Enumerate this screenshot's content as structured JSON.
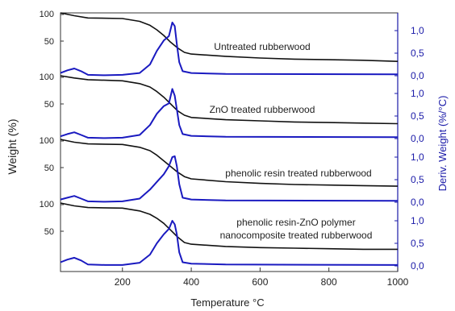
{
  "chart_data": {
    "type": "line",
    "xlabel": "Temperature °C",
    "ylabel_left": "Weight (%)",
    "ylabel_right": "Deriv. Weight (%/°C)",
    "x_range": [
      20,
      1000
    ],
    "x_ticks": [
      200,
      400,
      600,
      800,
      1000
    ],
    "x_tick_labels": [
      "200",
      "400",
      "600",
      "800",
      "1000"
    ],
    "weight_ticks": [
      50,
      100
    ],
    "weight_tick_labels": [
      "50",
      "100"
    ],
    "deriv_ticks": [
      0.0,
      0.5,
      1.0
    ],
    "deriv_tick_labels": [
      "0,0",
      "0,5",
      "1,0"
    ],
    "colors": {
      "weight": "#111111",
      "derivative": "#1a1ac0",
      "right_axis": "#1a1aa8",
      "frame": "#333333"
    },
    "panels": [
      {
        "label_lines": [
          "Untreated rubberwood"
        ],
        "weight": {
          "x": [
            20,
            60,
            100,
            200,
            250,
            280,
            300,
            320,
            340,
            360,
            380,
            400,
            500,
            600,
            700,
            800,
            900,
            1000
          ],
          "y": [
            100,
            95,
            91,
            90,
            85,
            78,
            70,
            60,
            48,
            38,
            30,
            27,
            23,
            20,
            18,
            17,
            16,
            14
          ]
        },
        "deriv": {
          "x": [
            20,
            40,
            60,
            80,
            100,
            150,
            200,
            250,
            280,
            300,
            320,
            335,
            345,
            352,
            358,
            365,
            375,
            400,
            500,
            1000
          ],
          "y": [
            0.06,
            0.12,
            0.16,
            0.1,
            0.02,
            0.01,
            0.02,
            0.06,
            0.25,
            0.55,
            0.78,
            0.88,
            1.18,
            1.1,
            0.7,
            0.3,
            0.1,
            0.06,
            0.04,
            0.03
          ]
        }
      },
      {
        "label_lines": [
          "ZnO treated rubberwood"
        ],
        "weight": {
          "x": [
            20,
            60,
            100,
            200,
            250,
            280,
            300,
            320,
            340,
            360,
            380,
            400,
            500,
            600,
            700,
            800,
            900,
            1000
          ],
          "y": [
            100,
            96,
            93,
            91,
            86,
            80,
            72,
            62,
            50,
            38,
            30,
            26,
            22,
            20,
            18,
            17,
            16,
            15
          ]
        },
        "deriv": {
          "x": [
            20,
            40,
            60,
            80,
            100,
            150,
            200,
            250,
            280,
            300,
            320,
            335,
            345,
            352,
            358,
            365,
            375,
            400,
            500,
            1000
          ],
          "y": [
            0.05,
            0.1,
            0.14,
            0.08,
            0.02,
            0.01,
            0.02,
            0.08,
            0.3,
            0.55,
            0.72,
            0.78,
            1.1,
            0.95,
            0.65,
            0.3,
            0.1,
            0.06,
            0.04,
            0.03
          ]
        }
      },
      {
        "label_lines": [
          "phenolic resin treated rubberwood"
        ],
        "weight": {
          "x": [
            20,
            60,
            100,
            200,
            250,
            280,
            300,
            320,
            340,
            360,
            380,
            400,
            500,
            600,
            700,
            800,
            900,
            1000
          ],
          "y": [
            100,
            95,
            92,
            91,
            86,
            80,
            72,
            62,
            52,
            42,
            34,
            30,
            25,
            22,
            20,
            19,
            18,
            17
          ]
        },
        "deriv": {
          "x": [
            20,
            40,
            60,
            80,
            100,
            150,
            200,
            250,
            280,
            300,
            320,
            335,
            345,
            352,
            358,
            365,
            375,
            400,
            500,
            1000
          ],
          "y": [
            0.06,
            0.1,
            0.14,
            0.08,
            0.02,
            0.01,
            0.02,
            0.08,
            0.28,
            0.45,
            0.62,
            0.8,
            1.0,
            1.02,
            0.8,
            0.4,
            0.1,
            0.06,
            0.04,
            0.03
          ]
        }
      },
      {
        "label_lines": [
          "phenolic resin-ZnO polymer",
          "nanocomposite treated rubberwood"
        ],
        "weight": {
          "x": [
            20,
            60,
            100,
            200,
            250,
            280,
            300,
            320,
            340,
            360,
            380,
            400,
            500,
            600,
            700,
            800,
            900,
            1000
          ],
          "y": [
            100,
            95,
            92,
            91,
            86,
            80,
            73,
            64,
            52,
            40,
            30,
            27,
            23,
            21,
            20,
            19,
            18,
            18
          ]
        },
        "deriv": {
          "x": [
            20,
            40,
            60,
            80,
            100,
            150,
            200,
            250,
            280,
            300,
            320,
            335,
            345,
            352,
            358,
            365,
            375,
            400,
            500,
            1000
          ],
          "y": [
            0.08,
            0.14,
            0.18,
            0.12,
            0.03,
            0.02,
            0.02,
            0.07,
            0.25,
            0.5,
            0.7,
            0.82,
            1.0,
            0.92,
            0.7,
            0.3,
            0.08,
            0.05,
            0.03,
            0.02
          ]
        }
      }
    ]
  }
}
